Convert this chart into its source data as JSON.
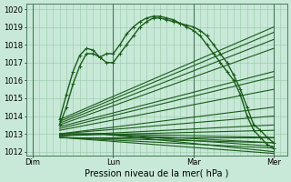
{
  "background_color": "#c8e8d8",
  "plot_bg_color": "#c8e8d8",
  "line_color": "#1a5c1a",
  "marker_color": "#1a5c1a",
  "grid_color": "#98c8a8",
  "ylim": [
    1011.8,
    1020.3
  ],
  "yticks": [
    1012,
    1013,
    1014,
    1015,
    1016,
    1017,
    1018,
    1019,
    1020
  ],
  "xlabel": "Pression niveau de la mer( hPa )",
  "xtick_labels": [
    "Dim",
    "Lun",
    "Mar",
    "Mer"
  ],
  "xtick_positions": [
    0,
    48,
    96,
    144
  ],
  "xlim": [
    -4,
    152
  ],
  "axis_fontsize": 7,
  "tick_fontsize": 6,
  "detailed_lines": [
    {
      "x": [
        16,
        20,
        24,
        28,
        32,
        36,
        40,
        44,
        48,
        52,
        56,
        60,
        64,
        68,
        72,
        76,
        80,
        84,
        88,
        92,
        96,
        100,
        104,
        108,
        112,
        116,
        120,
        124,
        128,
        132,
        136,
        140,
        144
      ],
      "y": [
        1013.8,
        1015.2,
        1016.5,
        1017.4,
        1017.8,
        1017.7,
        1017.3,
        1017.5,
        1017.5,
        1018.0,
        1018.6,
        1019.0,
        1019.3,
        1019.5,
        1019.6,
        1019.6,
        1019.5,
        1019.4,
        1019.2,
        1019.1,
        1019.0,
        1018.8,
        1018.5,
        1018.0,
        1017.5,
        1017.0,
        1016.3,
        1015.5,
        1014.5,
        1013.5,
        1013.2,
        1012.8,
        1012.5
      ],
      "lw": 1.0,
      "marker": "+",
      "ms": 3.0
    },
    {
      "x": [
        16,
        20,
        24,
        28,
        32,
        36,
        40,
        44,
        48,
        52,
        56,
        60,
        64,
        68,
        72,
        76,
        80,
        84,
        88,
        92,
        96,
        100,
        104,
        108,
        112,
        116,
        120,
        124,
        128,
        132,
        136,
        140,
        144
      ],
      "y": [
        1013.5,
        1014.5,
        1015.8,
        1016.8,
        1017.5,
        1017.5,
        1017.3,
        1017.0,
        1017.0,
        1017.5,
        1018.0,
        1018.5,
        1019.0,
        1019.3,
        1019.5,
        1019.5,
        1019.4,
        1019.3,
        1019.2,
        1019.0,
        1018.8,
        1018.5,
        1018.0,
        1017.5,
        1017.0,
        1016.5,
        1016.0,
        1015.2,
        1014.0,
        1013.2,
        1012.8,
        1012.4,
        1012.2
      ],
      "lw": 1.0,
      "marker": "+",
      "ms": 3.0
    }
  ],
  "fan_lines": [
    {
      "x": [
        16,
        144
      ],
      "y": [
        1013.8,
        1019.0
      ],
      "lw": 0.8
    },
    {
      "x": [
        16,
        144
      ],
      "y": [
        1013.7,
        1018.7
      ],
      "lw": 0.8
    },
    {
      "x": [
        16,
        144
      ],
      "y": [
        1013.6,
        1018.3
      ],
      "lw": 0.8
    },
    {
      "x": [
        16,
        144
      ],
      "y": [
        1013.5,
        1017.8
      ],
      "lw": 0.8
    },
    {
      "x": [
        16,
        144
      ],
      "y": [
        1013.4,
        1016.5
      ],
      "lw": 0.8
    },
    {
      "x": [
        16,
        144
      ],
      "y": [
        1013.3,
        1016.2
      ],
      "lw": 0.8
    },
    {
      "x": [
        16,
        144
      ],
      "y": [
        1013.2,
        1015.5
      ],
      "lw": 0.8
    },
    {
      "x": [
        16,
        144
      ],
      "y": [
        1013.0,
        1014.5
      ],
      "lw": 0.8
    },
    {
      "x": [
        16,
        144
      ],
      "y": [
        1013.0,
        1014.0
      ],
      "lw": 0.8
    },
    {
      "x": [
        16,
        144
      ],
      "y": [
        1012.9,
        1013.5
      ],
      "lw": 0.8
    },
    {
      "x": [
        16,
        144
      ],
      "y": [
        1012.9,
        1013.2
      ],
      "lw": 0.8
    },
    {
      "x": [
        16,
        144
      ],
      "y": [
        1012.8,
        1012.8
      ],
      "lw": 0.8
    },
    {
      "x": [
        16,
        144
      ],
      "y": [
        1012.8,
        1012.5
      ],
      "lw": 0.8
    },
    {
      "x": [
        16,
        144
      ],
      "y": [
        1012.8,
        1012.2
      ],
      "lw": 0.8
    },
    {
      "x": [
        16,
        144
      ],
      "y": [
        1012.8,
        1011.9
      ],
      "lw": 0.8
    }
  ],
  "flat_lines": [
    {
      "x": [
        16,
        40,
        144
      ],
      "y": [
        1013.0,
        1013.0,
        1012.8
      ],
      "lw": 0.8
    },
    {
      "x": [
        16,
        40,
        144
      ],
      "y": [
        1013.0,
        1013.0,
        1012.5
      ],
      "lw": 0.8
    },
    {
      "x": [
        16,
        40,
        144
      ],
      "y": [
        1012.9,
        1013.0,
        1012.3
      ],
      "lw": 0.8
    },
    {
      "x": [
        16,
        40,
        144
      ],
      "y": [
        1012.9,
        1013.0,
        1012.0
      ],
      "lw": 0.8
    }
  ],
  "vlines": [
    0,
    48,
    96,
    144
  ]
}
